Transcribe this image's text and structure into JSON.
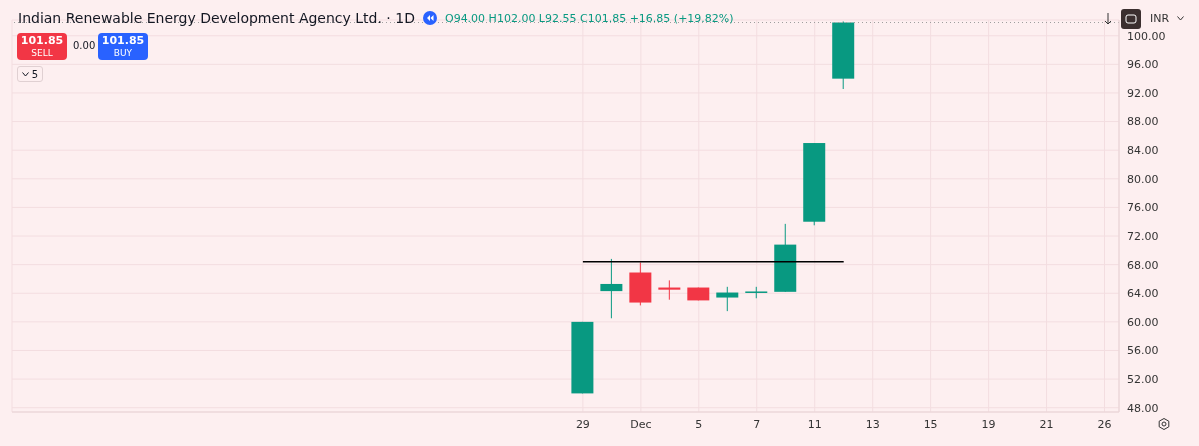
{
  "chart_data": {
    "type": "candlestick",
    "title": "Indian Renewable Energy Development Agency Ltd. · 1D",
    "subtitle": "O94.00 H102.00 L92.55 C101.85 +16.85 (+19.82%)",
    "categories": [
      "29",
      null,
      "Dec",
      null,
      "5",
      null,
      "7",
      null,
      "11",
      null,
      "13",
      null,
      "15",
      null,
      "19",
      null,
      "21",
      null,
      "26"
    ],
    "ohlc": [
      [
        50.0,
        60.0,
        50.0,
        60.0
      ],
      [
        64.3,
        68.8,
        60.5,
        65.3
      ],
      [
        66.9,
        68.3,
        62.3,
        62.7
      ],
      [
        64.8,
        65.8,
        63.1,
        64.5
      ],
      [
        64.8,
        64.8,
        63.0,
        63.0
      ],
      [
        63.4,
        64.9,
        61.5,
        64.1
      ],
      [
        64.2,
        64.9,
        63.3,
        64.25
      ],
      [
        64.2,
        73.7,
        64.2,
        70.8
      ],
      [
        74.0,
        85.0,
        73.5,
        85.0
      ],
      [
        94.0,
        102.0,
        92.55,
        101.85
      ],
      null,
      null,
      null,
      null,
      null,
      null,
      null,
      null,
      null
    ],
    "colors": [
      "#089981",
      "#089981",
      "#f23645",
      "#f23645",
      "#f23645",
      "#089981",
      "#089981",
      "#089981",
      "#089981",
      "#089981",
      null,
      null,
      null,
      null,
      null,
      null,
      null,
      null,
      null
    ],
    "ylim": [
      47.4,
      102.2
    ],
    "yticks": [
      {
        "value": 48,
        "label": "48.00"
      },
      {
        "value": 52,
        "label": "52.00"
      },
      {
        "value": 56,
        "label": "56.00"
      },
      {
        "value": 60,
        "label": "60.00"
      },
      {
        "value": 64,
        "label": "64.00"
      },
      {
        "value": 68,
        "label": "68.00"
      },
      {
        "value": 72,
        "label": "72.00"
      },
      {
        "value": 76,
        "label": "76.00"
      },
      {
        "value": 80,
        "label": "80.00"
      },
      {
        "value": 84,
        "label": "84.00"
      },
      {
        "value": 88,
        "label": "88.00"
      },
      {
        "value": 92,
        "label": "92.00"
      },
      {
        "value": 96,
        "label": "96.00"
      },
      {
        "value": 100,
        "label": "100.00"
      }
    ],
    "ref_lines": [
      {
        "axis": "y",
        "value": 68.4,
        "color": "#000000",
        "line_style": "solid"
      },
      {
        "axis": "y",
        "value": 101.85,
        "color": "#9e9e9e",
        "line_style": "dotted"
      }
    ],
    "annotations": [
      "101.85",
      "SELL",
      "0.00",
      "101.85",
      "BUY",
      "5",
      "INR"
    ],
    "grid": true
  }
}
